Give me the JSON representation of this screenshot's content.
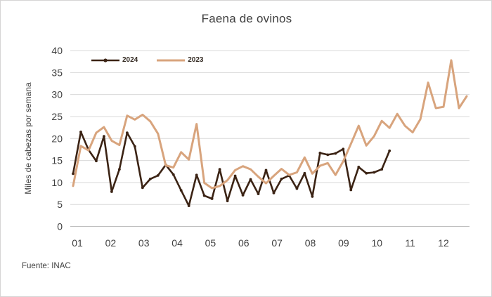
{
  "chart_data": {
    "type": "line",
    "title": "Faena de ovinos",
    "ylabel": "Miles de cabezas por semana",
    "source": "Fuente: INAC",
    "x_unit": "semana (weekly points), eje rotulado por mes",
    "xticklabels": [
      "01",
      "02",
      "03",
      "04",
      "05",
      "06",
      "07",
      "08",
      "09",
      "10",
      "11",
      "12"
    ],
    "yticks": [
      0,
      5,
      10,
      15,
      20,
      25,
      30,
      35,
      40
    ],
    "ylim": [
      0,
      40
    ],
    "grid": "horizontal",
    "legend_position": "top-left-inside",
    "colors": {
      "series_2024": "#3b2314",
      "series_2023": "#d8a47d",
      "text": "#404040",
      "gridline": "#d9d9d9",
      "axis_line": "#bfbfbf"
    },
    "series": [
      {
        "name": "2024",
        "color": "#3b2314",
        "marker": "dot",
        "values": [
          12,
          21.5,
          17.4,
          14.9,
          20.5,
          7.9,
          13,
          21.3,
          18.2,
          8.8,
          10.8,
          11.6,
          14,
          11.8,
          8.2,
          4.7,
          11.7,
          7,
          6.3,
          13,
          5.8,
          11.5,
          7.1,
          10.7,
          7.4,
          12.8,
          7.6,
          10.8,
          11.6,
          8.6,
          12.1,
          6.8,
          16.7,
          16.3,
          16.6,
          17.6,
          8.3,
          13.5,
          12.1,
          12.3,
          13,
          17.2
        ]
      },
      {
        "name": "2023",
        "color": "#d8a47d",
        "marker": "none",
        "values": [
          9.2,
          18.3,
          17.3,
          21.3,
          22.6,
          19.5,
          18.5,
          25.2,
          24.3,
          25.4,
          23.9,
          21.1,
          13.9,
          13.4,
          16.9,
          15.2,
          23.3,
          9.9,
          8.7,
          9.2,
          10.5,
          12.8,
          13.7,
          13,
          11.3,
          9.8,
          11.5,
          13.1,
          11.7,
          12.3,
          15.7,
          12,
          13.8,
          14.4,
          11.7,
          14.8,
          18.8,
          22.9,
          18.4,
          20.5,
          24,
          22.4,
          25.6,
          22.9,
          21.4,
          24.4,
          32.7,
          26.9,
          27.2,
          37.8,
          26.9,
          29.6
        ]
      }
    ]
  }
}
